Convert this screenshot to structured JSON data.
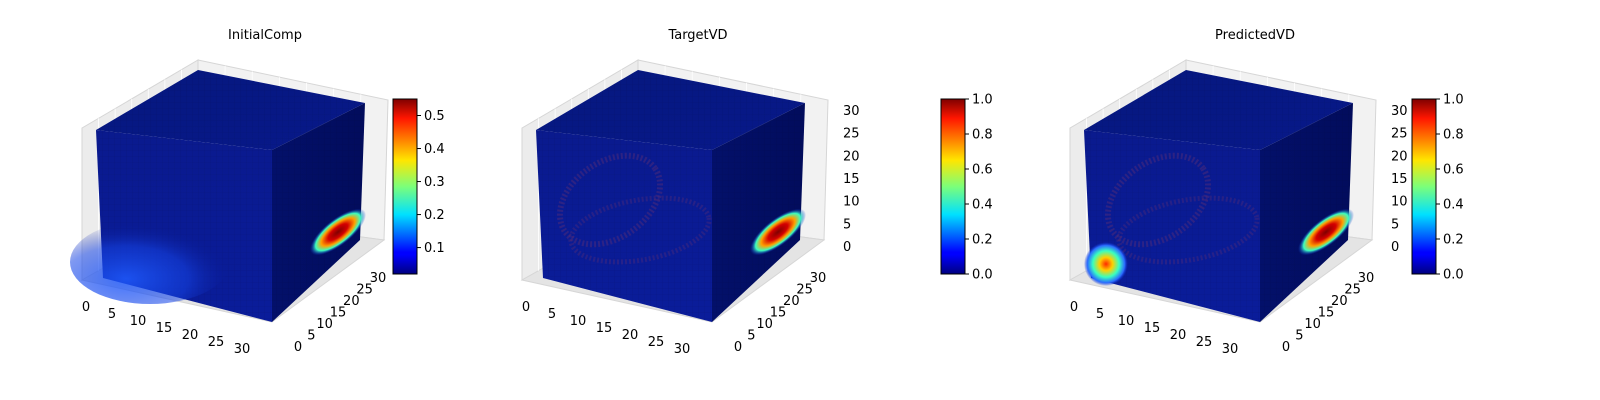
{
  "figure": {
    "panels": [
      {
        "id": "initial",
        "title": "InitialComp",
        "xticks": [
          "0",
          "5",
          "10",
          "15",
          "20",
          "25",
          "30"
        ],
        "yticks": [
          "0",
          "5",
          "10",
          "15",
          "20",
          "25",
          "30"
        ],
        "zticks": [],
        "colorbar": {
          "ticks": [
            "0.1",
            "0.2",
            "0.3",
            "0.4",
            "0.5"
          ],
          "vmin": 0.02,
          "vmax": 0.55
        },
        "blob_side": true,
        "blob_front_bottom": "diffuse",
        "rings": false
      },
      {
        "id": "target",
        "title": "TargetVD",
        "xticks": [
          "0",
          "5",
          "10",
          "15",
          "20",
          "25",
          "30"
        ],
        "yticks": [
          "0",
          "5",
          "10",
          "15",
          "20",
          "25",
          "30"
        ],
        "zticks": [
          "0",
          "5",
          "10",
          "15",
          "20",
          "25",
          "30"
        ],
        "colorbar": {
          "ticks": [
            "0.0",
            "0.2",
            "0.4",
            "0.6",
            "0.8",
            "1.0"
          ],
          "vmin": 0.0,
          "vmax": 1.0
        },
        "blob_side": true,
        "blob_front_bottom": "none",
        "rings": true
      },
      {
        "id": "predicted",
        "title": "PredictedVD",
        "xticks": [
          "0",
          "5",
          "10",
          "15",
          "20",
          "25",
          "30"
        ],
        "yticks": [
          "0",
          "5",
          "10",
          "15",
          "20",
          "25",
          "30"
        ],
        "zticks": [
          "0",
          "5",
          "10",
          "15",
          "20",
          "25",
          "30"
        ],
        "colorbar": {
          "ticks": [
            "0.0",
            "0.2",
            "0.4",
            "0.6",
            "0.8",
            "1.0"
          ],
          "vmin": 0.0,
          "vmax": 1.0
        },
        "blob_side": true,
        "blob_front_bottom": "hot",
        "rings": true
      }
    ]
  },
  "chart_data": [
    {
      "type": "heatmap",
      "title": "InitialComp",
      "grid_size": 32,
      "xlim": [
        0,
        32
      ],
      "ylim": [
        0,
        32
      ],
      "zlim": [
        0,
        32
      ],
      "color_range": [
        0.02,
        0.55
      ],
      "colormap": "jet"
    },
    {
      "type": "heatmap",
      "title": "TargetVD",
      "grid_size": 32,
      "xlim": [
        0,
        32
      ],
      "ylim": [
        0,
        32
      ],
      "zlim": [
        0,
        32
      ],
      "color_range": [
        0.0,
        1.0
      ],
      "colormap": "jet"
    },
    {
      "type": "heatmap",
      "title": "PredictedVD",
      "grid_size": 32,
      "xlim": [
        0,
        32
      ],
      "ylim": [
        0,
        32
      ],
      "zlim": [
        0,
        32
      ],
      "color_range": [
        0.0,
        1.0
      ],
      "colormap": "jet"
    }
  ]
}
